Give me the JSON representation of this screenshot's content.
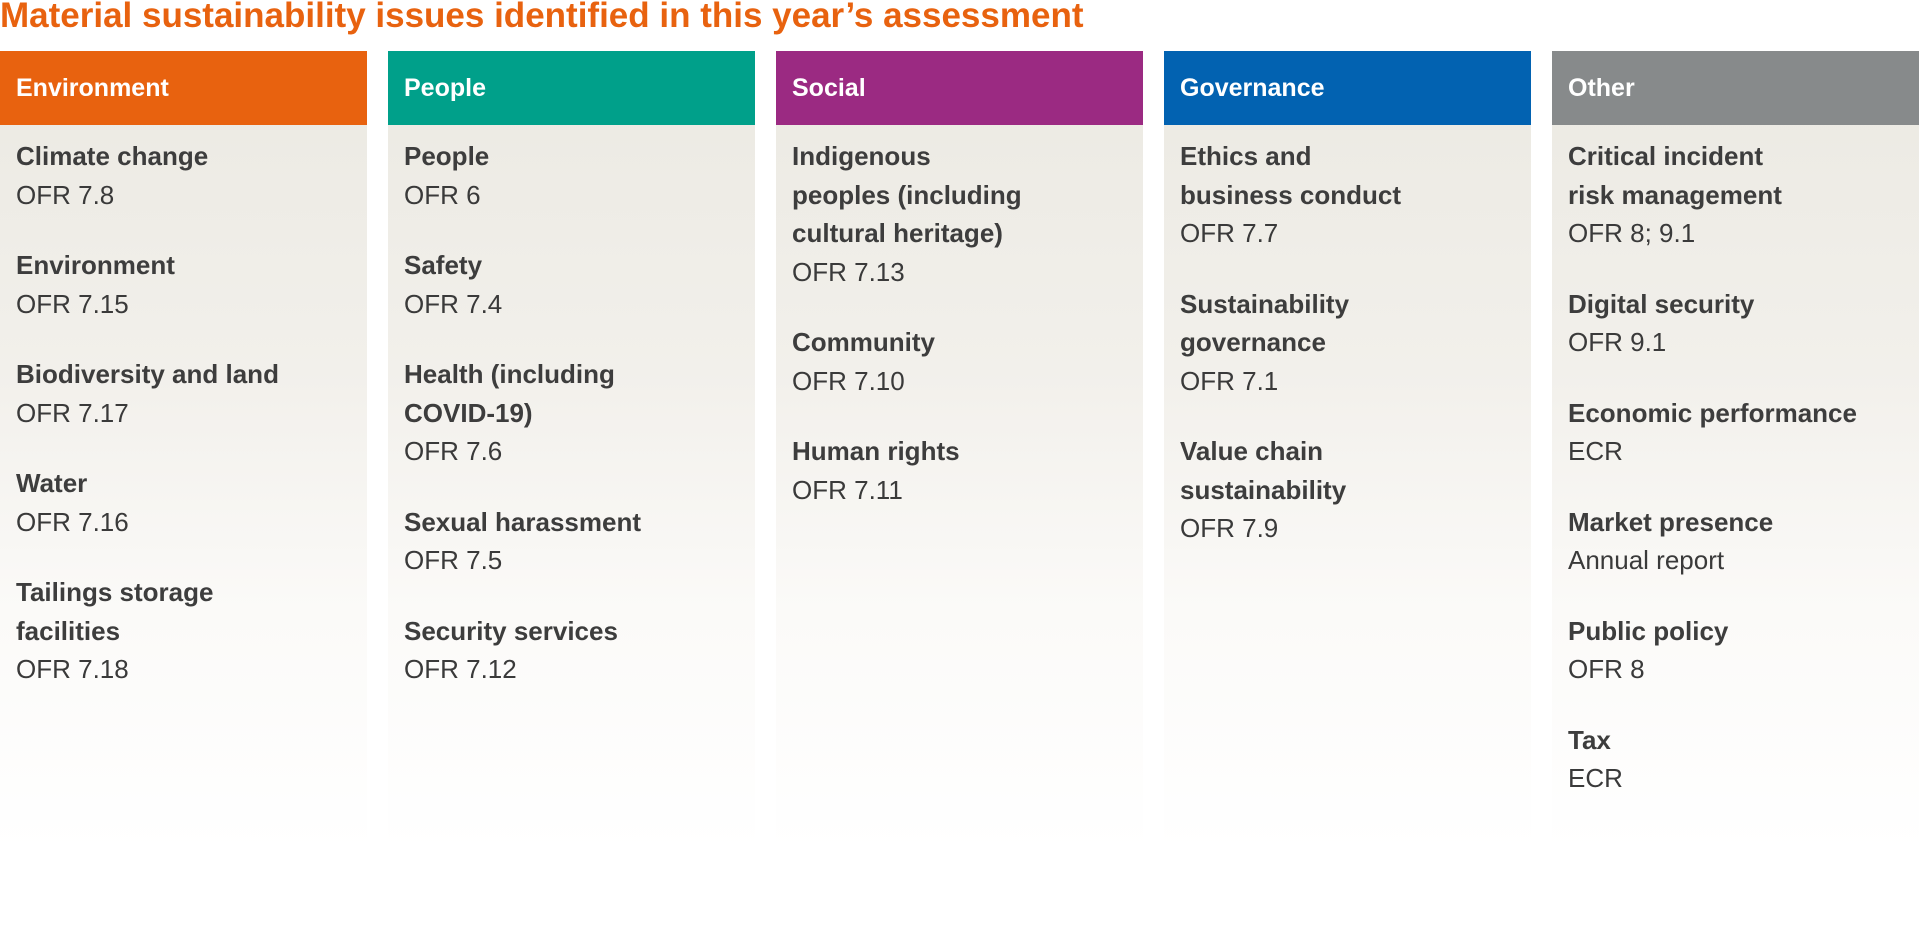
{
  "title": "Material sustainability issues identified in this year’s assessment",
  "columns": [
    {
      "header": "Environment",
      "color": "#e8620f",
      "items": [
        {
          "lines": [
            "Climate change"
          ],
          "ref": "OFR 7.8"
        },
        {
          "lines": [
            "Environment"
          ],
          "ref": "OFR 7.15"
        },
        {
          "lines": [
            "Biodiversity and land"
          ],
          "ref": "OFR 7.17"
        },
        {
          "lines": [
            "Water"
          ],
          "ref": "OFR 7.16"
        },
        {
          "lines": [
            "Tailings storage",
            "facilities"
          ],
          "ref": "OFR 7.18"
        }
      ]
    },
    {
      "header": "People",
      "color": "#00a08a",
      "items": [
        {
          "lines": [
            "People"
          ],
          "ref": "OFR 6"
        },
        {
          "lines": [
            "Safety"
          ],
          "ref": "OFR 7.4"
        },
        {
          "lines": [
            "Health (including",
            "COVID-19)"
          ],
          "ref": "OFR 7.6"
        },
        {
          "lines": [
            "Sexual harassment"
          ],
          "ref": "OFR 7.5"
        },
        {
          "lines": [
            "Security services"
          ],
          "ref": "OFR 7.12"
        }
      ]
    },
    {
      "header": "Social",
      "color": "#9b2a82",
      "items": [
        {
          "lines": [
            "Indigenous",
            "peoples (including",
            "cultural heritage)"
          ],
          "ref": "OFR 7.13"
        },
        {
          "lines": [
            "Community"
          ],
          "ref": "OFR 7.10"
        },
        {
          "lines": [
            "Human rights"
          ],
          "ref": "OFR 7.11"
        }
      ]
    },
    {
      "header": "Governance",
      "color": "#0262b1",
      "items": [
        {
          "lines": [
            "Ethics and",
            "business conduct"
          ],
          "ref": "OFR 7.7"
        },
        {
          "lines": [
            "Sustainability",
            "governance"
          ],
          "ref": "OFR 7.1"
        },
        {
          "lines": [
            "Value chain",
            "sustainability"
          ],
          "ref": "OFR 7.9"
        }
      ]
    },
    {
      "header": "Other",
      "color": "#878a8b",
      "items": [
        {
          "lines": [
            "Critical incident",
            "risk management"
          ],
          "ref": "OFR 8; 9.1"
        },
        {
          "lines": [
            "Digital security"
          ],
          "ref": "OFR 9.1"
        },
        {
          "lines": [
            "Economic performance"
          ],
          "ref": "ECR"
        },
        {
          "lines": [
            "Market presence"
          ],
          "ref": "Annual report"
        },
        {
          "lines": [
            "Public policy"
          ],
          "ref": "OFR 8"
        },
        {
          "lines": [
            "Tax"
          ],
          "ref": "ECR"
        }
      ]
    }
  ]
}
